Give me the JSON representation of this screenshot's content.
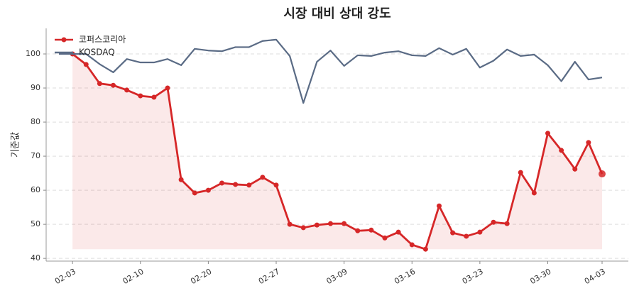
{
  "chart_data": {
    "type": "line",
    "title": "시장 대비 상대 강도",
    "y_label": "기준값",
    "categories": [
      null,
      "02-03",
      null,
      null,
      null,
      null,
      "02-10",
      null,
      null,
      null,
      null,
      "02-20",
      null,
      null,
      null,
      null,
      "02-27",
      null,
      null,
      null,
      null,
      "03-09",
      null,
      null,
      null,
      null,
      "03-16",
      null,
      null,
      null,
      null,
      "03-23",
      null,
      null,
      null,
      null,
      "03-30",
      null,
      null,
      null,
      "04-03"
    ],
    "series": [
      {
        "name": "코퍼스코리아",
        "color": "#d62728",
        "fill": true,
        "markers": true,
        "values": [
          null,
          100,
          96.9,
          91.3,
          90.8,
          89.4,
          87.7,
          87.3,
          90.0,
          63.1,
          59.2,
          60.0,
          62.1,
          61.7,
          61.5,
          63.8,
          61.5,
          50.0,
          49.0,
          49.8,
          50.2,
          50.2,
          48.1,
          48.3,
          46.0,
          47.7,
          44.0,
          42.7,
          55.4,
          47.5,
          46.5,
          47.7,
          50.6,
          50.2,
          65.2,
          59.2,
          76.7,
          71.7,
          66.2,
          74.0,
          64.8
        ]
      },
      {
        "name": "KOSDAQ",
        "color": "#5a6b85",
        "fill": false,
        "markers": false,
        "values": [
          100,
          100,
          100,
          97.0,
          94.6,
          98.5,
          97.5,
          97.5,
          98.5,
          96.7,
          101.5,
          101.0,
          100.8,
          102.0,
          102.0,
          103.8,
          104.2,
          99.4,
          85.6,
          97.7,
          101.0,
          96.5,
          99.6,
          99.4,
          100.4,
          100.8,
          99.6,
          99.4,
          101.7,
          99.8,
          101.5,
          96.0,
          98.0,
          101.3,
          99.4,
          99.8,
          96.7,
          92.0,
          97.7,
          92.5,
          93.1
        ]
      }
    ],
    "ylim": [
      39.2,
      107.5
    ],
    "yticks": [
      40,
      50,
      60,
      70,
      80,
      90,
      100
    ],
    "grid": true,
    "legend": "upper left"
  }
}
